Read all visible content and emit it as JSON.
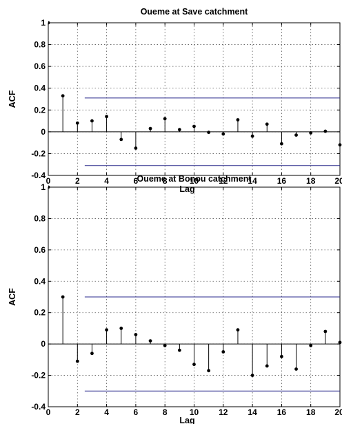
{
  "chart_data": [
    {
      "type": "stem",
      "title": "Oueme at Save catchment",
      "xlabel": "Lag",
      "ylabel": "ACF",
      "xlim": [
        0,
        20
      ],
      "ylim": [
        -0.4,
        1
      ],
      "xticks": [
        "0",
        "2",
        "4",
        "6",
        "8",
        "10",
        "12",
        "14",
        "16",
        "18",
        "20"
      ],
      "yticks": [
        "-0.4",
        "-0.2",
        "0",
        "0.2",
        "0.4",
        "0.6",
        "0.8",
        "1"
      ],
      "grid": true,
      "confidence_bounds": {
        "upper": 0.31,
        "lower": -0.31,
        "x_start": 2.5,
        "x_end": 20
      },
      "x": [
        0,
        1,
        2,
        3,
        4,
        5,
        6,
        7,
        8,
        9,
        10,
        11,
        12,
        13,
        14,
        15,
        16,
        17,
        18,
        19,
        20
      ],
      "values": [
        1.0,
        0.33,
        0.08,
        0.1,
        0.14,
        -0.07,
        -0.15,
        0.03,
        0.12,
        0.02,
        0.05,
        -0.005,
        -0.02,
        0.11,
        -0.04,
        0.07,
        -0.11,
        -0.03,
        -0.01,
        0.005,
        -0.12
      ]
    },
    {
      "type": "stem",
      "title": "Oueme at Bonou catchment",
      "xlabel": "Lag",
      "ylabel": "ACF",
      "xlim": [
        0,
        20
      ],
      "ylim": [
        -0.4,
        1
      ],
      "xticks": [
        "0",
        "2",
        "4",
        "6",
        "8",
        "10",
        "12",
        "14",
        "16",
        "18",
        "20"
      ],
      "yticks": [
        "-0.4",
        "-0.2",
        "0",
        "0.2",
        "0.4",
        "0.6",
        "0.8",
        "1"
      ],
      "grid": true,
      "confidence_bounds": {
        "upper": 0.3,
        "lower": -0.3,
        "x_start": 2.5,
        "x_end": 20
      },
      "x": [
        0,
        1,
        2,
        3,
        4,
        5,
        6,
        7,
        8,
        9,
        10,
        11,
        12,
        13,
        14,
        15,
        16,
        17,
        18,
        19,
        20
      ],
      "values": [
        1.0,
        0.3,
        -0.11,
        -0.06,
        0.09,
        0.1,
        0.06,
        0.02,
        -0.01,
        -0.04,
        -0.13,
        -0.17,
        -0.05,
        0.09,
        -0.2,
        -0.14,
        -0.08,
        -0.16,
        -0.01,
        0.08,
        0.01
      ]
    }
  ]
}
